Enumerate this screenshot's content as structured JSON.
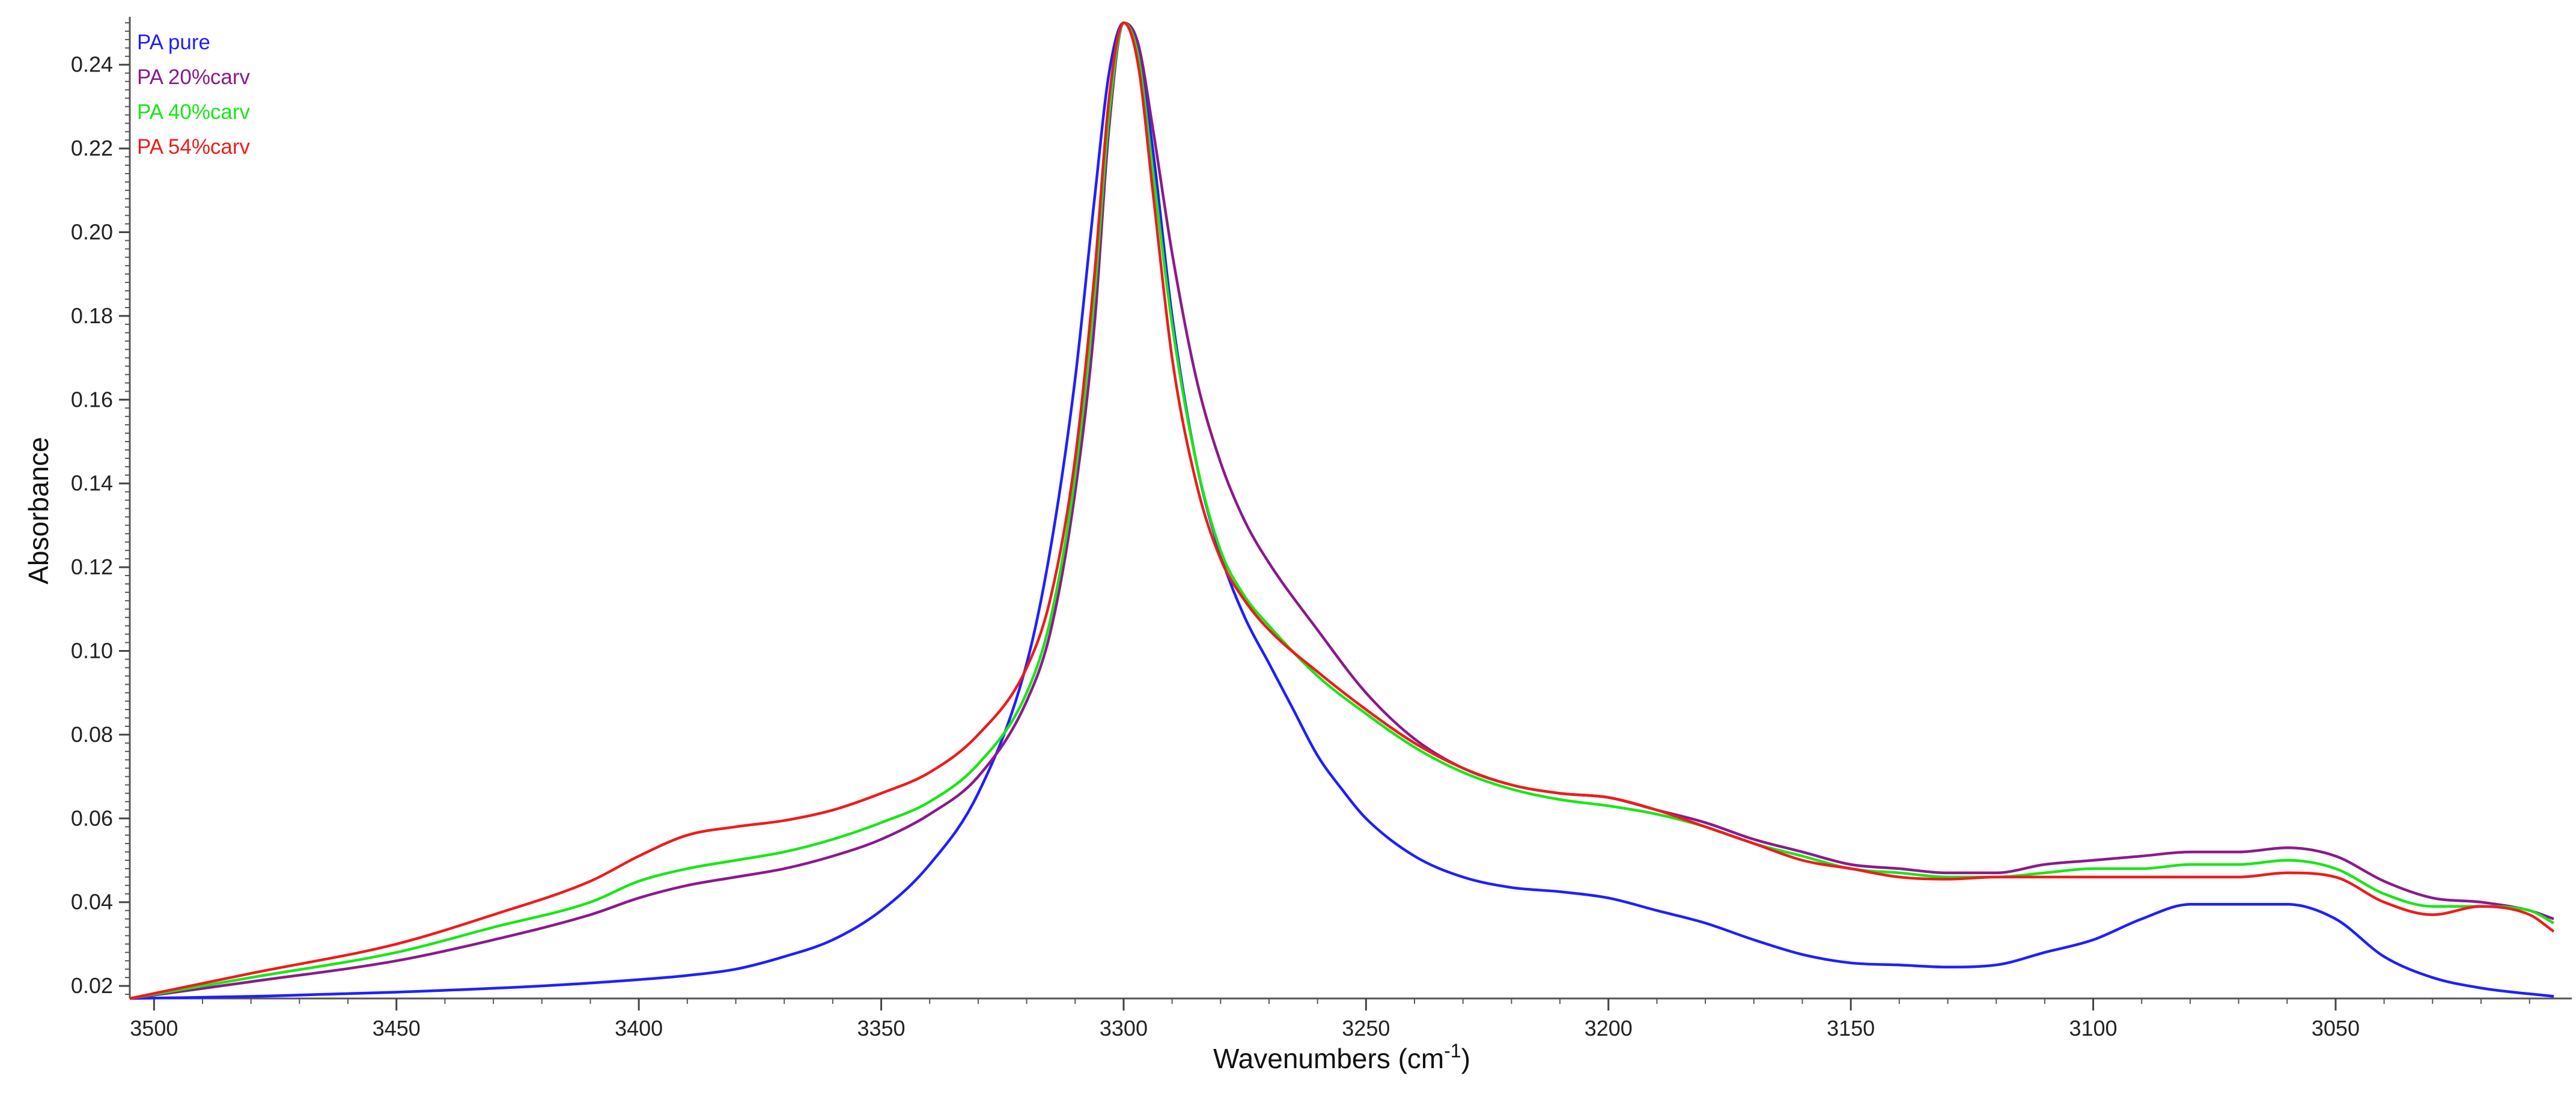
{
  "chart_data": {
    "type": "line",
    "title": "",
    "xlabel": "Wavenumbers (cm-1)",
    "xlabel_base": "Wavenumbers (cm",
    "xlabel_sup": "-1",
    "xlabel_close": ")",
    "ylabel": "Absorbance",
    "xlim": [
      3505,
      3005
    ],
    "ylim": [
      0.017,
      0.25
    ],
    "x_reversed": true,
    "grid": false,
    "legend_position": "top-left",
    "x_ticks": [
      {
        "value": 3500,
        "label": "3500"
      },
      {
        "value": 3450,
        "label": "3450"
      },
      {
        "value": 3400,
        "label": "3400"
      },
      {
        "value": 3350,
        "label": "3350"
      },
      {
        "value": 3300,
        "label": "3300"
      },
      {
        "value": 3250,
        "label": "3250"
      },
      {
        "value": 3200,
        "label": "3200"
      },
      {
        "value": 3150,
        "label": "3150"
      },
      {
        "value": 3100,
        "label": "3100"
      },
      {
        "value": 3050,
        "label": "3050"
      }
    ],
    "y_ticks": [
      {
        "value": 0.02,
        "label": "0.02"
      },
      {
        "value": 0.04,
        "label": "0.04"
      },
      {
        "value": 0.06,
        "label": "0.06"
      },
      {
        "value": 0.08,
        "label": "0.08"
      },
      {
        "value": 0.1,
        "label": "0.10"
      },
      {
        "value": 0.12,
        "label": "0.12"
      },
      {
        "value": 0.14,
        "label": "0.14"
      },
      {
        "value": 0.16,
        "label": "0.16"
      },
      {
        "value": 0.18,
        "label": "0.18"
      },
      {
        "value": 0.2,
        "label": "0.20"
      },
      {
        "value": 0.22,
        "label": "0.22"
      },
      {
        "value": 0.24,
        "label": "0.24"
      }
    ],
    "series": [
      {
        "name": "PA pure",
        "color": "#1f1fff",
        "x": [
          3505,
          3480,
          3450,
          3420,
          3400,
          3390,
          3380,
          3370,
          3360,
          3350,
          3340,
          3330,
          3320,
          3315,
          3310,
          3306,
          3303,
          3300,
          3297,
          3294,
          3290,
          3285,
          3280,
          3275,
          3270,
          3265,
          3260,
          3255,
          3250,
          3240,
          3230,
          3220,
          3210,
          3200,
          3190,
          3180,
          3170,
          3160,
          3150,
          3140,
          3130,
          3120,
          3110,
          3100,
          3090,
          3080,
          3070,
          3060,
          3050,
          3040,
          3030,
          3020,
          3005
        ],
        "y": [
          0.017,
          0.0175,
          0.0185,
          0.02,
          0.0215,
          0.0225,
          0.024,
          0.027,
          0.031,
          0.038,
          0.049,
          0.066,
          0.097,
          0.125,
          0.165,
          0.208,
          0.238,
          0.25,
          0.243,
          0.22,
          0.18,
          0.145,
          0.123,
          0.108,
          0.097,
          0.086,
          0.075,
          0.067,
          0.06,
          0.051,
          0.046,
          0.0435,
          0.0425,
          0.041,
          0.038,
          0.035,
          0.031,
          0.0275,
          0.0255,
          0.025,
          0.0245,
          0.025,
          0.028,
          0.031,
          0.036,
          0.0395,
          0.0395,
          0.0395,
          0.036,
          0.027,
          0.022,
          0.0195,
          0.0175
        ]
      },
      {
        "name": "PA 20%carv",
        "color": "#8b1a8b",
        "x": [
          3505,
          3480,
          3450,
          3430,
          3410,
          3400,
          3390,
          3380,
          3370,
          3360,
          3350,
          3340,
          3330,
          3320,
          3315,
          3310,
          3306,
          3303,
          3300,
          3297,
          3294,
          3290,
          3285,
          3280,
          3275,
          3270,
          3260,
          3250,
          3240,
          3230,
          3220,
          3210,
          3200,
          3190,
          3180,
          3170,
          3160,
          3150,
          3140,
          3130,
          3120,
          3110,
          3100,
          3090,
          3080,
          3070,
          3060,
          3050,
          3040,
          3030,
          3020,
          3010,
          3005
        ],
        "y": [
          0.017,
          0.021,
          0.026,
          0.031,
          0.037,
          0.041,
          0.044,
          0.046,
          0.048,
          0.051,
          0.055,
          0.061,
          0.07,
          0.088,
          0.105,
          0.138,
          0.178,
          0.225,
          0.25,
          0.245,
          0.225,
          0.195,
          0.165,
          0.145,
          0.131,
          0.121,
          0.105,
          0.09,
          0.079,
          0.072,
          0.068,
          0.066,
          0.065,
          0.062,
          0.059,
          0.055,
          0.052,
          0.049,
          0.048,
          0.047,
          0.047,
          0.049,
          0.05,
          0.051,
          0.052,
          0.052,
          0.053,
          0.051,
          0.045,
          0.041,
          0.04,
          0.038,
          0.036
        ]
      },
      {
        "name": "PA 40%carv",
        "color": "#19e619",
        "x": [
          3505,
          3480,
          3450,
          3430,
          3410,
          3400,
          3390,
          3380,
          3370,
          3360,
          3350,
          3340,
          3330,
          3320,
          3315,
          3310,
          3306,
          3303,
          3300,
          3297,
          3294,
          3290,
          3285,
          3280,
          3275,
          3270,
          3260,
          3250,
          3240,
          3230,
          3220,
          3210,
          3200,
          3190,
          3180,
          3170,
          3160,
          3150,
          3140,
          3130,
          3120,
          3110,
          3100,
          3090,
          3080,
          3070,
          3060,
          3050,
          3040,
          3030,
          3020,
          3010,
          3005
        ],
        "y": [
          0.017,
          0.022,
          0.028,
          0.034,
          0.04,
          0.045,
          0.048,
          0.05,
          0.052,
          0.055,
          0.059,
          0.064,
          0.073,
          0.09,
          0.108,
          0.142,
          0.185,
          0.228,
          0.25,
          0.242,
          0.215,
          0.178,
          0.145,
          0.124,
          0.113,
          0.106,
          0.094,
          0.085,
          0.077,
          0.071,
          0.067,
          0.0645,
          0.063,
          0.061,
          0.058,
          0.054,
          0.051,
          0.048,
          0.047,
          0.046,
          0.046,
          0.047,
          0.048,
          0.048,
          0.049,
          0.049,
          0.05,
          0.048,
          0.042,
          0.039,
          0.039,
          0.038,
          0.035
        ]
      },
      {
        "name": "PA 54%carv",
        "color": "#ee1c1c",
        "x": [
          3505,
          3480,
          3450,
          3430,
          3410,
          3400,
          3390,
          3380,
          3370,
          3360,
          3350,
          3340,
          3330,
          3320,
          3315,
          3310,
          3306,
          3303,
          3300,
          3297,
          3294,
          3290,
          3285,
          3280,
          3275,
          3270,
          3260,
          3250,
          3240,
          3230,
          3220,
          3210,
          3200,
          3190,
          3180,
          3170,
          3160,
          3150,
          3140,
          3130,
          3120,
          3110,
          3100,
          3090,
          3080,
          3070,
          3060,
          3050,
          3040,
          3030,
          3020,
          3010,
          3005
        ],
        "y": [
          0.017,
          0.023,
          0.03,
          0.037,
          0.045,
          0.051,
          0.056,
          0.058,
          0.0595,
          0.062,
          0.066,
          0.071,
          0.08,
          0.096,
          0.113,
          0.146,
          0.19,
          0.232,
          0.25,
          0.24,
          0.21,
          0.17,
          0.14,
          0.122,
          0.112,
          0.105,
          0.095,
          0.086,
          0.078,
          0.072,
          0.068,
          0.066,
          0.065,
          0.062,
          0.058,
          0.054,
          0.05,
          0.048,
          0.046,
          0.0455,
          0.046,
          0.046,
          0.046,
          0.046,
          0.046,
          0.046,
          0.047,
          0.046,
          0.04,
          0.037,
          0.039,
          0.037,
          0.033
        ]
      }
    ]
  }
}
